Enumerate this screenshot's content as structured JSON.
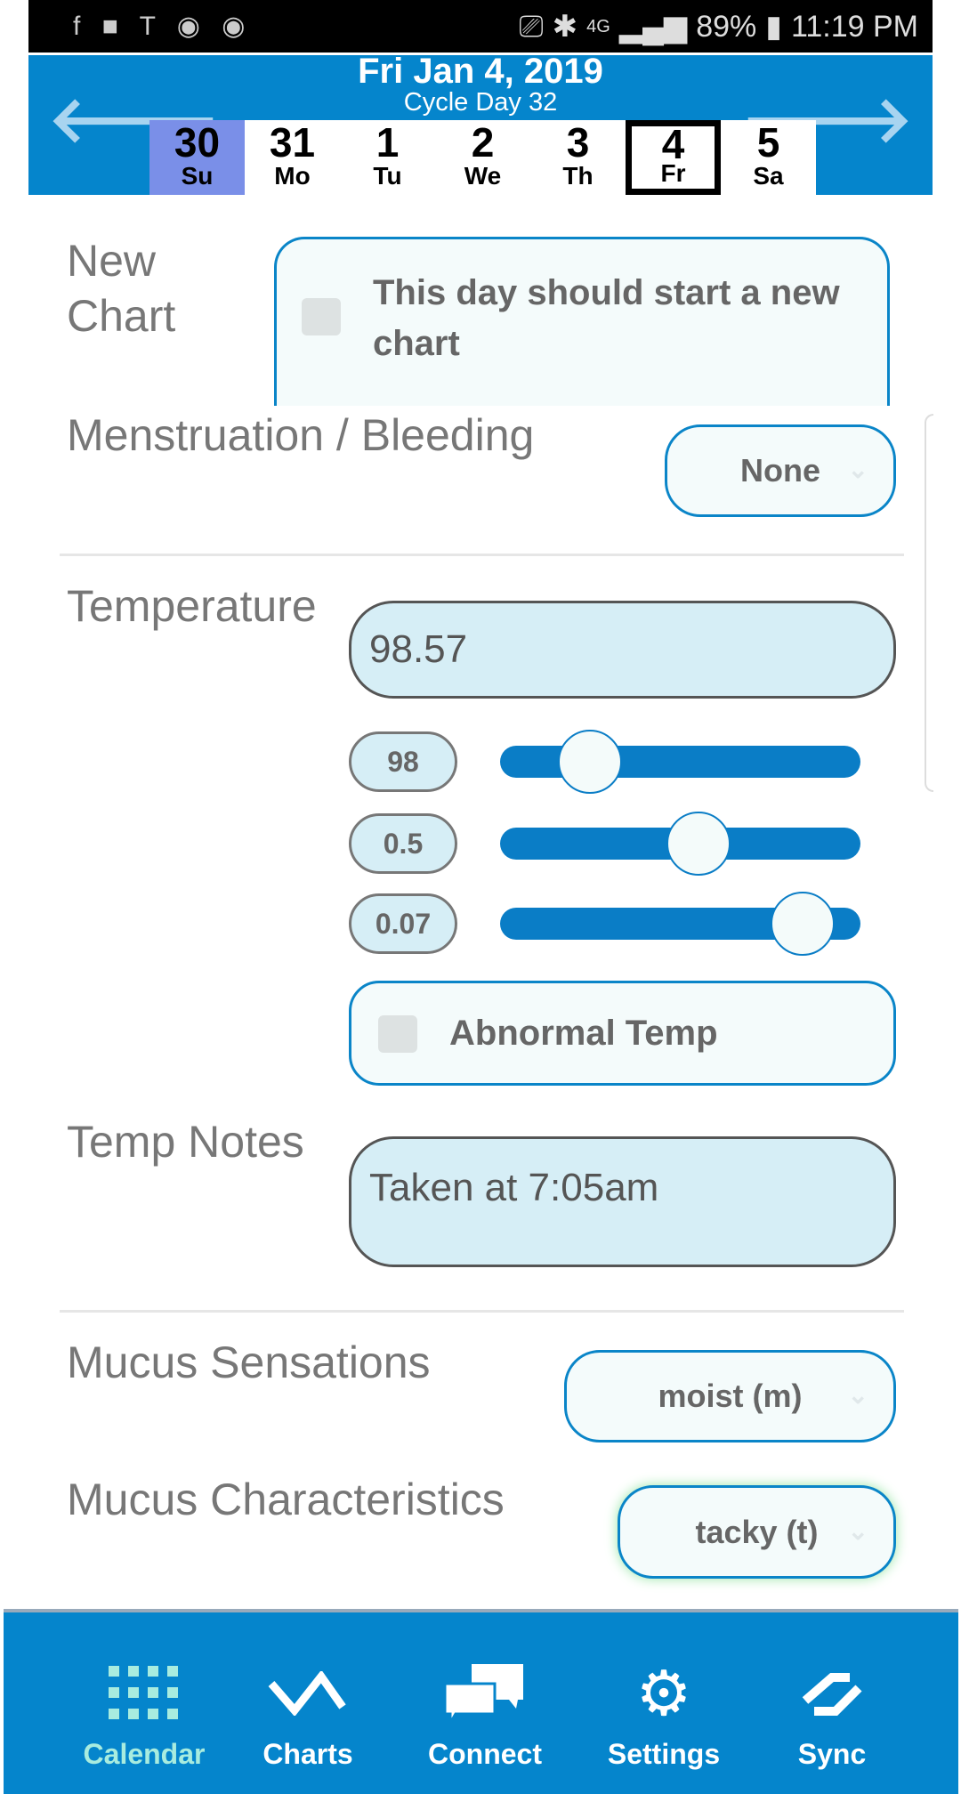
{
  "status_bar": {
    "left_icons": [
      "facebook-icon",
      "video-icon",
      "tesla-icon",
      "vpn-icon",
      "vpn-icon"
    ],
    "battery": "89%",
    "time": "11:19 PM",
    "network": "4G"
  },
  "header": {
    "date": "Fri Jan 4, 2019",
    "cycle_day": "Cycle Day 32",
    "days": [
      {
        "num": "30",
        "wd": "Su"
      },
      {
        "num": "31",
        "wd": "Mo"
      },
      {
        "num": "1",
        "wd": "Tu"
      },
      {
        "num": "2",
        "wd": "We"
      },
      {
        "num": "3",
        "wd": "Th"
      },
      {
        "num": "4",
        "wd": "Fr"
      },
      {
        "num": "5",
        "wd": "Sa"
      }
    ],
    "accent": "#0585cc"
  },
  "new_chart": {
    "label": "New Chart",
    "checkbox_label": "This day should start a new chart",
    "checked": false
  },
  "bleeding": {
    "label": "Menstruation / Bleeding",
    "value": "None"
  },
  "temperature": {
    "label": "Temperature",
    "value": "98.57",
    "sliders": [
      {
        "value": "98",
        "fraction": 0.25
      },
      {
        "value": "0.5",
        "fraction": 0.55
      },
      {
        "value": "0.07",
        "fraction": 0.84
      }
    ],
    "abnormal_label": "Abnormal Temp",
    "abnormal_checked": false
  },
  "temp_notes": {
    "label": "Temp Notes",
    "value": "Taken at 7:05am"
  },
  "mucus_sensations": {
    "label": "Mucus Sensations",
    "value": "moist (m)"
  },
  "mucus_characteristics": {
    "label": "Mucus Characteristics",
    "value": "tacky (t)"
  },
  "nav": {
    "items": [
      {
        "label": "Calendar",
        "icon": "calendar-grid-icon",
        "active": true
      },
      {
        "label": "Charts",
        "icon": "chart-line-icon"
      },
      {
        "label": "Connect",
        "icon": "chat-bubbles-icon"
      },
      {
        "label": "Settings",
        "icon": "gear-icon"
      },
      {
        "label": "Sync",
        "icon": "sync-icon"
      }
    ],
    "active_color": "#a8ecdf"
  }
}
